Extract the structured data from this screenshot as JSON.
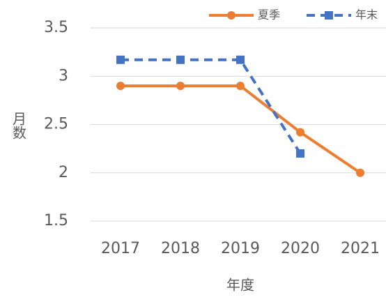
{
  "chart_data": {
    "type": "line",
    "categories": [
      "2017",
      "2018",
      "2019",
      "2020",
      "2021"
    ],
    "series": [
      {
        "name": "夏季",
        "color": "#ed7d31",
        "dash": false,
        "marker": "circle",
        "values": [
          2.9,
          2.9,
          2.9,
          2.42,
          2.0
        ]
      },
      {
        "name": "年末",
        "color": "#4472c4",
        "dash": true,
        "marker": "square",
        "values": [
          3.17,
          3.17,
          3.17,
          2.2,
          null
        ]
      }
    ],
    "ylim": [
      1.5,
      3.5
    ],
    "yticks": [
      1.5,
      2,
      2.5,
      3,
      3.5
    ],
    "grid": true,
    "y_label": "月数",
    "x_label": "年度",
    "legend": "top-right"
  }
}
